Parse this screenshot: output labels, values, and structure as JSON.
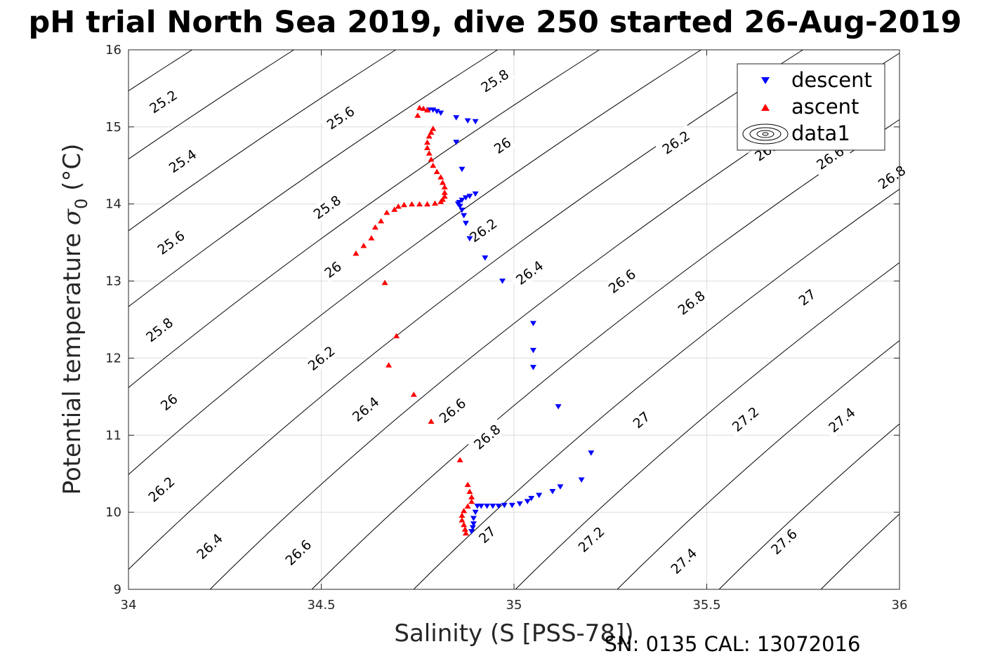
{
  "chart_data": {
    "type": "scatter",
    "title": "pH trial North Sea 2019, dive 250 started 26-Aug-2019",
    "xlabel": "Salinity (S [PSS-78])",
    "ylabel_main": "Potential temperature ",
    "ylabel_symbol": "σ",
    "ylabel_subscript": "0",
    "ylabel_unit": " (°C)",
    "footer": "SN: 0135  CAL: 13072016",
    "xlim": [
      34,
      36
    ],
    "ylim": [
      9,
      16
    ],
    "grid": true,
    "legend_position": "top-right",
    "x_ticks": [
      34,
      34.5,
      35,
      35.5,
      36
    ],
    "x_tick_labels": [
      "34",
      "34.5",
      "35",
      "35.5",
      "36"
    ],
    "y_ticks": [
      9,
      10,
      11,
      12,
      13,
      14,
      15,
      16
    ],
    "y_tick_labels": [
      "9",
      "10",
      "11",
      "12",
      "13",
      "14",
      "15",
      "16"
    ],
    "density_contours": {
      "name": "data1",
      "levels": [
        25.2,
        25.4,
        25.6,
        25.8,
        26,
        26.2,
        26.4,
        26.6,
        26.8,
        27,
        27.2,
        27.4,
        27.6
      ],
      "labels": [
        {
          "text": "25.2",
          "s": 34.09,
          "t": 15.33
        },
        {
          "text": "25.4",
          "s": 34.14,
          "t": 14.56
        },
        {
          "text": "25.6",
          "s": 34.11,
          "t": 13.5
        },
        {
          "text": "25.8",
          "s": 34.08,
          "t": 12.37
        },
        {
          "text": "26",
          "s": 34.105,
          "t": 11.43
        },
        {
          "text": "26.2",
          "s": 34.085,
          "t": 10.3
        },
        {
          "text": "26.4",
          "s": 34.21,
          "t": 9.56
        },
        {
          "text": "26.6",
          "s": 34.44,
          "t": 9.48
        },
        {
          "text": "27",
          "s": 34.93,
          "t": 9.71
        },
        {
          "text": "27.2",
          "s": 35.2,
          "t": 9.65
        },
        {
          "text": "27.4",
          "s": 35.44,
          "t": 9.37
        },
        {
          "text": "27.6",
          "s": 35.7,
          "t": 9.62
        },
        {
          "text": "25.6",
          "s": 34.55,
          "t": 15.12
        },
        {
          "text": "25.8",
          "s": 34.515,
          "t": 13.96
        },
        {
          "text": "26",
          "s": 34.53,
          "t": 13.15
        },
        {
          "text": "26.2",
          "s": 34.5,
          "t": 12.0
        },
        {
          "text": "26.4",
          "s": 34.615,
          "t": 11.34
        },
        {
          "text": "26.6",
          "s": 34.84,
          "t": 11.32
        },
        {
          "text": "26.8",
          "s": 34.93,
          "t": 10.98
        },
        {
          "text": "27",
          "s": 35.33,
          "t": 11.2
        },
        {
          "text": "27.2",
          "s": 35.6,
          "t": 11.21
        },
        {
          "text": "27.4",
          "s": 35.85,
          "t": 11.2
        },
        {
          "text": "25.8",
          "s": 34.95,
          "t": 15.6
        },
        {
          "text": "26",
          "s": 34.97,
          "t": 14.76
        },
        {
          "text": "26.2",
          "s": 34.92,
          "t": 13.66
        },
        {
          "text": "26.4",
          "s": 35.04,
          "t": 13.11
        },
        {
          "text": "26.6",
          "s": 35.28,
          "t": 13.0
        },
        {
          "text": "26.8",
          "s": 35.46,
          "t": 12.72
        },
        {
          "text": "27",
          "s": 35.76,
          "t": 12.79
        },
        {
          "text": "26.2",
          "s": 35.42,
          "t": 14.8
        },
        {
          "text": "26.4",
          "s": 35.66,
          "t": 14.71
        },
        {
          "text": "26.6",
          "s": 35.82,
          "t": 14.6
        },
        {
          "text": "26.8",
          "s": 35.98,
          "t": 14.35
        }
      ]
    },
    "series": [
      {
        "name": "descent",
        "marker": "triangle-down",
        "color": "#0000ff",
        "points": [
          [
            34.78,
            15.22
          ],
          [
            34.79,
            15.22
          ],
          [
            34.8,
            15.2
          ],
          [
            34.81,
            15.18
          ],
          [
            34.85,
            15.12
          ],
          [
            34.88,
            15.08
          ],
          [
            34.9,
            15.07
          ],
          [
            34.85,
            14.8
          ],
          [
            34.865,
            14.45
          ],
          [
            34.9,
            14.13
          ],
          [
            34.885,
            14.1
          ],
          [
            34.875,
            14.08
          ],
          [
            34.865,
            14.05
          ],
          [
            34.858,
            14.02
          ],
          [
            34.855,
            14.0
          ],
          [
            34.86,
            13.97
          ],
          [
            34.865,
            13.92
          ],
          [
            34.87,
            13.85
          ],
          [
            34.875,
            13.75
          ],
          [
            34.885,
            13.55
          ],
          [
            34.925,
            13.3
          ],
          [
            34.97,
            13.0
          ],
          [
            35.05,
            12.45
          ],
          [
            35.05,
            12.1
          ],
          [
            35.05,
            11.88
          ],
          [
            35.115,
            11.37
          ],
          [
            35.2,
            10.77
          ],
          [
            35.175,
            10.42
          ],
          [
            35.12,
            10.33
          ],
          [
            35.1,
            10.27
          ],
          [
            35.065,
            10.22
          ],
          [
            35.045,
            10.18
          ],
          [
            35.035,
            10.14
          ],
          [
            35.015,
            10.11
          ],
          [
            34.995,
            10.09
          ],
          [
            34.975,
            10.09
          ],
          [
            34.96,
            10.08
          ],
          [
            34.945,
            10.08
          ],
          [
            34.93,
            10.08
          ],
          [
            34.915,
            10.08
          ],
          [
            34.905,
            10.08
          ],
          [
            34.9,
            10.0
          ],
          [
            34.895,
            9.92
          ],
          [
            34.895,
            9.85
          ],
          [
            34.893,
            9.8
          ],
          [
            34.89,
            9.75
          ]
        ]
      },
      {
        "name": "ascent",
        "marker": "triangle-up",
        "color": "#ff0000",
        "points": [
          [
            34.755,
            15.25
          ],
          [
            34.765,
            15.24
          ],
          [
            34.775,
            15.22
          ],
          [
            34.75,
            15.15
          ],
          [
            34.79,
            14.98
          ],
          [
            34.785,
            14.93
          ],
          [
            34.78,
            14.88
          ],
          [
            34.775,
            14.8
          ],
          [
            34.775,
            14.73
          ],
          [
            34.78,
            14.66
          ],
          [
            34.785,
            14.58
          ],
          [
            34.79,
            14.5
          ],
          [
            34.8,
            14.42
          ],
          [
            34.81,
            14.35
          ],
          [
            34.815,
            14.28
          ],
          [
            34.82,
            14.22
          ],
          [
            34.82,
            14.15
          ],
          [
            34.82,
            14.1
          ],
          [
            34.815,
            14.06
          ],
          [
            34.81,
            14.03
          ],
          [
            34.795,
            14.01
          ],
          [
            34.775,
            14.0
          ],
          [
            34.755,
            14.0
          ],
          [
            34.735,
            14.0
          ],
          [
            34.715,
            13.99
          ],
          [
            34.7,
            13.97
          ],
          [
            34.69,
            13.93
          ],
          [
            34.67,
            13.89
          ],
          [
            34.655,
            13.78
          ],
          [
            34.64,
            13.7
          ],
          [
            34.63,
            13.56
          ],
          [
            34.61,
            13.46
          ],
          [
            34.59,
            13.36
          ],
          [
            34.665,
            12.98
          ],
          [
            34.695,
            12.29
          ],
          [
            34.675,
            11.91
          ],
          [
            34.74,
            11.53
          ],
          [
            34.785,
            11.18
          ],
          [
            34.86,
            10.68
          ],
          [
            34.88,
            10.36
          ],
          [
            34.885,
            10.27
          ],
          [
            34.89,
            10.2
          ],
          [
            34.89,
            10.14
          ],
          [
            34.88,
            10.08
          ],
          [
            34.87,
            10.02
          ],
          [
            34.865,
            9.96
          ],
          [
            34.865,
            9.9
          ],
          [
            34.87,
            9.84
          ],
          [
            34.873,
            9.78
          ],
          [
            34.875,
            9.73
          ]
        ]
      }
    ]
  }
}
